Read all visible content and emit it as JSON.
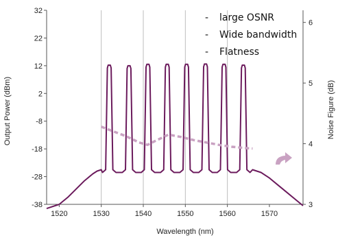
{
  "chart_data": {
    "type": "line",
    "xlabel": "Wavelength (nm)",
    "ylabel": "Output Power (dBm)",
    "y2label": "Noise Figure (dB)",
    "xlim": [
      1517,
      1578
    ],
    "ylim": [
      -38,
      32
    ],
    "y2lim": [
      3,
      6.2
    ],
    "x_ticks": [
      1520,
      1530,
      1540,
      1550,
      1560,
      1570
    ],
    "y_ticks": [
      -38,
      -28,
      -18,
      -8,
      2,
      12,
      22,
      32
    ],
    "y2_ticks": [
      3,
      4,
      5,
      6
    ],
    "vertical_grid": [
      1530,
      1540,
      1550,
      1560
    ],
    "annotations": [
      "large OSNR",
      "Wide bandwidth",
      "Flatness"
    ],
    "annotation_bullet": "-",
    "colors": {
      "power": "#6b1a5c",
      "noise": "#c9a2c2",
      "grid": "#bdbdbd",
      "arrow": "#c9a2c2"
    },
    "series": [
      {
        "role": "power",
        "baseline": [
          [
            1517,
            -39.5
          ],
          [
            1520,
            -38
          ],
          [
            1522,
            -35.5
          ],
          [
            1524,
            -32.5
          ],
          [
            1526,
            -29.5
          ],
          [
            1528,
            -27
          ],
          [
            1529,
            -26
          ],
          [
            1530,
            -25.5
          ],
          [
            1566,
            -25.5
          ],
          [
            1568,
            -26.5
          ],
          [
            1570,
            -28.5
          ],
          [
            1572,
            -31
          ],
          [
            1574,
            -33.5
          ],
          [
            1576,
            -36
          ],
          [
            1578,
            -38.5
          ]
        ],
        "floor": -26.5,
        "peak_base": -25.5,
        "peak_halfwidth": 0.85,
        "peaks": [
          [
            1531.9,
            12.2
          ],
          [
            1536.6,
            12
          ],
          [
            1541.1,
            12.5
          ],
          [
            1545.7,
            12.5
          ],
          [
            1550.3,
            12.5
          ],
          [
            1554.8,
            12.6
          ],
          [
            1559.2,
            12.5
          ],
          [
            1563.8,
            12.2
          ]
        ]
      },
      {
        "role": "noise",
        "axis": "y2",
        "points": [
          [
            1530,
            4.28
          ],
          [
            1533,
            4.2
          ],
          [
            1536,
            4.12
          ],
          [
            1539,
            4.02
          ],
          [
            1541,
            3.98
          ],
          [
            1543,
            4.05
          ],
          [
            1546,
            4.15
          ],
          [
            1549,
            4.11
          ],
          [
            1552,
            4.06
          ],
          [
            1555,
            4.02
          ],
          [
            1558,
            3.98
          ],
          [
            1561,
            3.95
          ],
          [
            1564,
            3.93
          ],
          [
            1566,
            3.92
          ]
        ]
      }
    ]
  }
}
